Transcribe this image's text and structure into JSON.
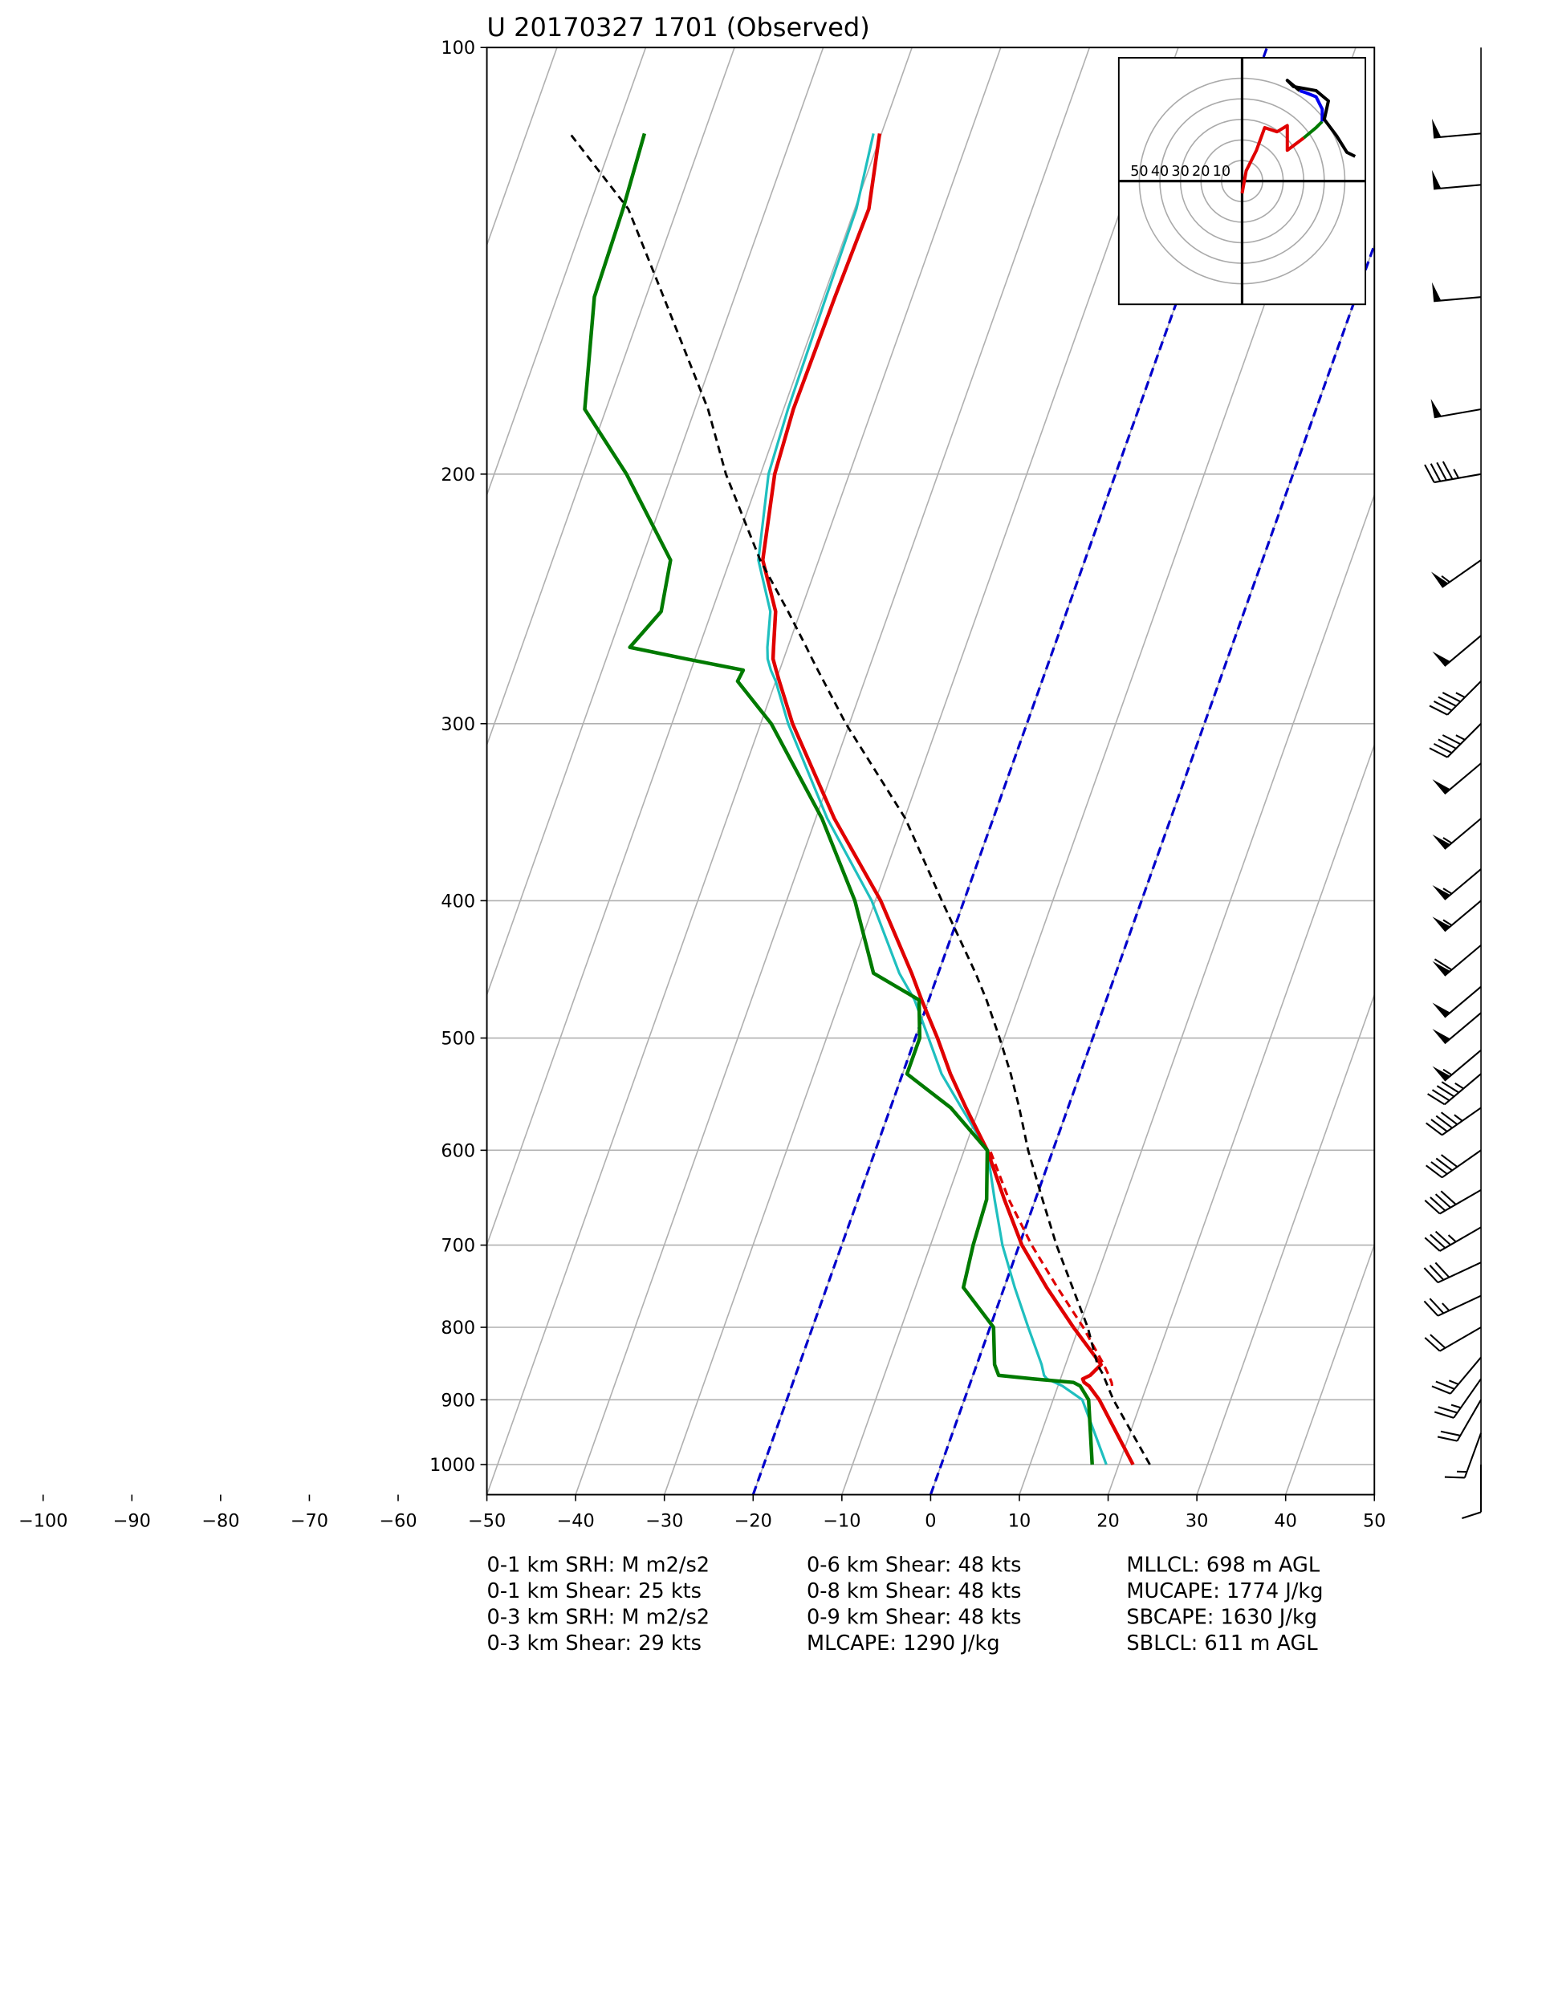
{
  "chart_data": {
    "type": "skewt",
    "title": "U 20170327 1701   (Observed)",
    "xlim": [
      -50,
      50
    ],
    "ylim": [
      100,
      1050
    ],
    "log_y": true,
    "grid": true,
    "xticks": [
      {
        "value": -100,
        "label": "−100"
      },
      {
        "value": -90,
        "label": "−90"
      },
      {
        "value": -80,
        "label": "−80"
      },
      {
        "value": -70,
        "label": "−70"
      },
      {
        "value": -60,
        "label": "−60"
      },
      {
        "value": -50,
        "label": "−50"
      },
      {
        "value": -40,
        "label": "−40"
      },
      {
        "value": -30,
        "label": "−30"
      },
      {
        "value": -20,
        "label": "−20"
      },
      {
        "value": -10,
        "label": "−10"
      },
      0,
      10,
      20,
      30,
      40,
      50
    ],
    "yticks": [
      100,
      200,
      300,
      400,
      500,
      600,
      700,
      800,
      900,
      1000
    ],
    "dashed_isotherms": [
      -20,
      0
    ],
    "dashed_isotherm_color": "#0000cc",
    "pressure": [
      1000,
      900,
      880,
      875,
      870,
      865,
      850,
      800,
      750,
      700,
      650,
      600,
      560,
      530,
      500,
      470,
      450,
      400,
      350,
      300,
      280,
      275,
      270,
      265,
      250,
      230,
      200,
      180,
      150,
      130,
      115
    ],
    "series": [
      {
        "color": "#1fbfbf",
        "width": 2,
        "dash": false,
        "values": [
          18.6,
          13.3,
          10.5,
          9.5,
          8.5,
          8.0,
          7.3,
          4.3,
          1.2,
          -1.9,
          -4.6,
          -7.4,
          -12.0,
          -15.6,
          -18.5,
          -21.6,
          -24.4,
          -30.4,
          -38.7,
          -46.9,
          -50.0,
          -51.0,
          -51.8,
          -52.3,
          -53.4,
          -56.8,
          -59.1,
          -59.5,
          -59.7,
          -59.8,
          -60.9
        ]
      },
      {
        "color": "#e00000",
        "width": 2.8,
        "dash": false,
        "values": [
          21.6,
          15.2,
          13.5,
          12.8,
          12.5,
          13.2,
          14.0,
          9.4,
          4.8,
          0.3,
          -3.5,
          -7.4,
          -11.5,
          -14.6,
          -17.5,
          -20.8,
          -23.0,
          -29.4,
          -37.9,
          -46.4,
          -49.6,
          -50.4,
          -51.2,
          -51.6,
          -52.8,
          -56.3,
          -58.4,
          -58.9,
          -58.7,
          -58.4,
          -60.2
        ]
      },
      {
        "color": "#e00000",
        "width": 2,
        "dash": true,
        "values": [
          null,
          null,
          16.1,
          15.9,
          15.6,
          15.3,
          14.3,
          10.5,
          6.0,
          1.4,
          -3.0,
          -7.1,
          null,
          null,
          null,
          null,
          null,
          null,
          null,
          null,
          null,
          null,
          null,
          null,
          null,
          null,
          null,
          null,
          null,
          null,
          null
        ]
      },
      {
        "color": "#007a00",
        "width": 2.8,
        "dash": false,
        "values": [
          17.0,
          14.0,
          12.5,
          11.6,
          7.0,
          2.9,
          2.0,
          0.4,
          -4.6,
          -5.2,
          -5.5,
          -7.4,
          -13.2,
          -19.5,
          -19.5,
          -21.1,
          -27.3,
          -32.3,
          -39.3,
          -48.8,
          -54.3,
          -54.1,
          -61.0,
          -67.8,
          -65.7,
          -66.7,
          -75.1,
          -82.4,
          -85.8,
          -86.1,
          -86.7
        ]
      },
      {
        "color": "#000000",
        "width": 1.8,
        "dash": true,
        "values": [
          23.5,
          16.8,
          15.6,
          15.3,
          15.0,
          14.7,
          13.6,
          11.0,
          7.7,
          4.2,
          0.8,
          -2.8,
          -5.5,
          -7.8,
          -10.5,
          -13.5,
          -15.8,
          -22.5,
          -29.9,
          -40.4,
          -44.6,
          -45.7,
          -46.8,
          -47.9,
          -51.4,
          -56.6,
          -63.9,
          -68.5,
          -78.0,
          -85.5,
          -95.1
        ]
      }
    ],
    "wind": {
      "pressure": [
        115,
        125,
        150,
        180,
        200,
        230,
        260,
        280,
        300,
        320,
        350,
        380,
        400,
        430,
        460,
        480,
        510,
        530,
        560,
        600,
        640,
        680,
        720,
        760,
        800,
        840,
        870,
        900,
        950,
        1000
      ],
      "speed": [
        50,
        50,
        50,
        50,
        45,
        55,
        50,
        45,
        45,
        50,
        55,
        55,
        55,
        60,
        50,
        50,
        55,
        45,
        45,
        40,
        40,
        35,
        30,
        25,
        20,
        25,
        25,
        20,
        15,
        10
      ],
      "direction": [
        265,
        265,
        265,
        260,
        260,
        235,
        230,
        225,
        225,
        230,
        230,
        230,
        230,
        230,
        230,
        230,
        230,
        230,
        235,
        235,
        240,
        240,
        245,
        245,
        240,
        220,
        215,
        210,
        200,
        180
      ]
    },
    "hodograph": {
      "lim": [
        -60,
        60
      ],
      "rings": [
        50,
        40,
        30,
        20,
        10
      ],
      "segments": [
        {
          "color": "#e00000",
          "u": [
            0,
            2,
            7,
            11,
            17,
            22,
            22,
            30
          ],
          "v": [
            -6,
            5,
            15,
            26,
            24,
            27,
            15,
            21
          ]
        },
        {
          "color": "#007a00",
          "u": [
            30,
            36,
            39
          ],
          "v": [
            21,
            26,
            29
          ]
        },
        {
          "color": "#0000ee",
          "u": [
            39,
            39,
            36,
            31,
            28
          ],
          "v": [
            29,
            35,
            41,
            43,
            44
          ]
        },
        {
          "color": "#000000",
          "u": [
            28,
            22,
            25,
            36,
            42,
            40,
            46,
            51,
            55
          ],
          "v": [
            44,
            49,
            46,
            44,
            39,
            30,
            22,
            14,
            12
          ]
        }
      ]
    },
    "stats": [
      [
        "0-1 km SRH: M m2/s2",
        "0-1 km Shear: 25 kts",
        "0-3 km SRH: M m2/s2",
        "0-3 km Shear: 29 kts"
      ],
      [
        "0-6 km Shear: 48 kts",
        "0-8 km Shear: 48 kts",
        "0-9 km Shear: 48 kts",
        "MLCAPE: 1290 J/kg"
      ],
      [
        "MLLCL: 698 m AGL",
        "MUCAPE: 1774 J/kg",
        "SBCAPE: 1630 J/kg",
        "SBLCL: 611 m AGL"
      ]
    ]
  }
}
